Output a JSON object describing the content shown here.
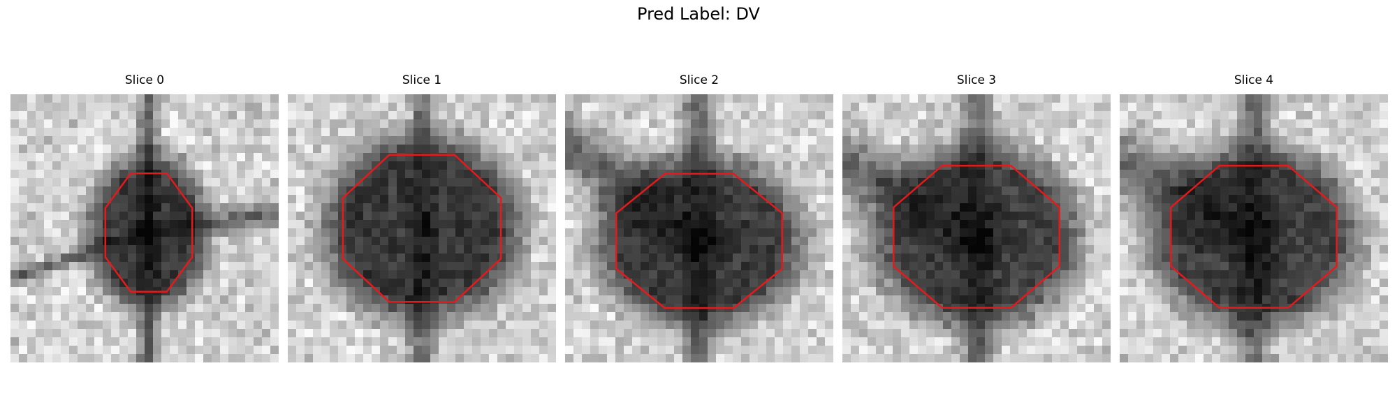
{
  "figure": {
    "title": "Pred Label: DV"
  },
  "panels": [
    {
      "title": "Slice 0",
      "contour_color": "#e41a1c"
    },
    {
      "title": "Slice 1",
      "contour_color": "#e41a1c"
    },
    {
      "title": "Slice 2",
      "contour_color": "#e41a1c"
    },
    {
      "title": "Slice 3",
      "contour_color": "#e41a1c"
    },
    {
      "title": "Slice 4",
      "contour_color": "#e41a1c"
    }
  ]
}
